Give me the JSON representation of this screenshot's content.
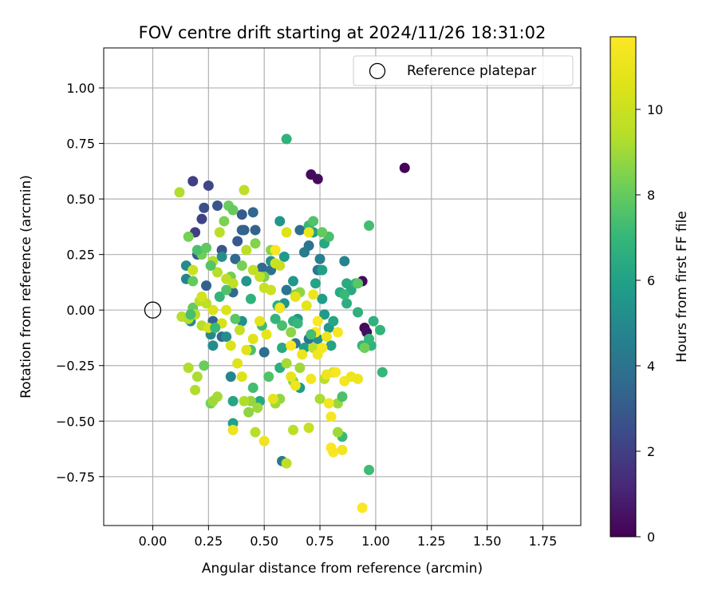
{
  "chart_data": {
    "type": "scatter",
    "title": "FOV centre drift starting at 2024/11/26 18:31:02",
    "xlabel": "Angular distance from reference (arcmin)",
    "ylabel": "Rotation from reference (arcmin)",
    "xlim": [
      -0.22,
      1.92
    ],
    "ylim": [
      -0.97,
      1.18
    ],
    "xticks": [
      "0.00",
      "0.25",
      "0.50",
      "0.75",
      "1.00",
      "1.25",
      "1.50",
      "1.75"
    ],
    "xtick_values": [
      0,
      0.25,
      0.5,
      0.75,
      1.0,
      1.25,
      1.5,
      1.75
    ],
    "yticks": [
      "−0.75",
      "−0.50",
      "−0.25",
      "0.00",
      "0.25",
      "0.50",
      "0.75",
      "1.00"
    ],
    "ytick_values": [
      -0.75,
      -0.5,
      -0.25,
      0,
      0.25,
      0.5,
      0.75,
      1.0
    ],
    "grid": true,
    "legend": {
      "position": "top-right",
      "entries": [
        {
          "label": "Reference platepar",
          "marker": "open-circle"
        }
      ]
    },
    "reference_point": {
      "x": 0.0,
      "y": 0.0
    },
    "colorbar": {
      "label": "Hours from first FF file",
      "colormap": "viridis",
      "range": [
        0,
        11.7
      ],
      "ticks": [
        "0",
        "2",
        "4",
        "6",
        "8",
        "10"
      ],
      "tick_values": [
        0,
        2,
        4,
        6,
        8,
        10
      ]
    },
    "points": [
      [
        1.13,
        0.64,
        0.1
      ],
      [
        0.71,
        0.61,
        0.3
      ],
      [
        0.74,
        0.59,
        0.3
      ],
      [
        0.94,
        0.13,
        0.2
      ],
      [
        0.95,
        -0.08,
        0.3
      ],
      [
        0.96,
        -0.1,
        0.4
      ],
      [
        0.18,
        0.58,
        2.0
      ],
      [
        0.25,
        0.56,
        2.3
      ],
      [
        0.22,
        0.41,
        2.1
      ],
      [
        0.23,
        0.46,
        2.6
      ],
      [
        0.19,
        0.35,
        2.0
      ],
      [
        0.29,
        0.47,
        2.8
      ],
      [
        0.4,
        0.43,
        3.0
      ],
      [
        0.45,
        0.44,
        3.5
      ],
      [
        0.41,
        0.36,
        3.2
      ],
      [
        0.46,
        0.36,
        3.3
      ],
      [
        0.38,
        0.31,
        3.0
      ],
      [
        0.31,
        0.27,
        2.8
      ],
      [
        0.2,
        0.25,
        3.1
      ],
      [
        0.4,
        0.36,
        3.4
      ],
      [
        0.37,
        0.23,
        3.5
      ],
      [
        0.49,
        0.19,
        3.6
      ],
      [
        0.53,
        0.18,
        3.9
      ],
      [
        0.24,
        0.11,
        3.2
      ],
      [
        0.27,
        -0.05,
        3.4
      ],
      [
        0.31,
        -0.12,
        3.6
      ],
      [
        0.36,
        0.08,
        3.7
      ],
      [
        0.5,
        -0.19,
        3.8
      ],
      [
        0.57,
        0.01,
        3.5
      ],
      [
        0.6,
        0.09,
        4.1
      ],
      [
        0.66,
        0.36,
        3.9
      ],
      [
        0.7,
        0.29,
        4.0
      ],
      [
        0.68,
        0.26,
        4.3
      ],
      [
        0.74,
        0.18,
        4.2
      ],
      [
        0.75,
        0.23,
        4.6
      ],
      [
        0.86,
        0.22,
        4.8
      ],
      [
        0.58,
        -0.68,
        4.3
      ],
      [
        0.64,
        -0.15,
        4.2
      ],
      [
        0.7,
        -0.13,
        4.0
      ],
      [
        0.35,
        -0.3,
        4.8
      ],
      [
        0.15,
        0.14,
        4.8
      ],
      [
        0.15,
        0.2,
        5.0
      ],
      [
        0.17,
        -0.05,
        5.0
      ],
      [
        0.26,
        -0.11,
        4.9
      ],
      [
        0.27,
        -0.16,
        5.1
      ],
      [
        0.33,
        -0.12,
        5.2
      ],
      [
        0.4,
        -0.05,
        5.3
      ],
      [
        0.42,
        0.13,
        5.5
      ],
      [
        0.31,
        0.24,
        5.2
      ],
      [
        0.53,
        0.22,
        5.4
      ],
      [
        0.57,
        0.4,
        5.5
      ],
      [
        0.59,
        0.24,
        5.7
      ],
      [
        0.63,
        0.13,
        5.6
      ],
      [
        0.59,
        0.03,
        5.5
      ],
      [
        0.65,
        -0.04,
        5.6
      ],
      [
        0.68,
        -0.17,
        5.8
      ],
      [
        0.66,
        -0.35,
        5.8
      ],
      [
        0.74,
        -0.13,
        5.4
      ],
      [
        0.77,
        -0.02,
        5.7
      ],
      [
        0.79,
        -0.08,
        5.6
      ],
      [
        0.76,
        0.05,
        5.9
      ],
      [
        0.76,
        0.18,
        6.0
      ],
      [
        0.8,
        -0.16,
        6.1
      ],
      [
        0.81,
        -0.05,
        6.2
      ],
      [
        0.77,
        0.3,
        6.3
      ],
      [
        0.72,
        0.35,
        6.0
      ],
      [
        0.73,
        0.12,
        6.1
      ],
      [
        0.87,
        0.12,
        6.5
      ],
      [
        0.89,
        0.09,
        6.3
      ],
      [
        0.84,
        0.08,
        6.4
      ],
      [
        0.87,
        0.03,
        6.6
      ],
      [
        0.91,
        0.12,
        6.8
      ],
      [
        0.92,
        -0.01,
        6.7
      ],
      [
        0.98,
        -0.16,
        6.8
      ],
      [
        0.97,
        -0.13,
        7.0
      ],
      [
        0.99,
        -0.05,
        6.7
      ],
      [
        1.02,
        -0.09,
        6.9
      ],
      [
        1.03,
        -0.28,
        7.0
      ],
      [
        0.94,
        -0.16,
        6.9
      ],
      [
        0.97,
        -0.72,
        7.2
      ],
      [
        0.85,
        -0.57,
        7.1
      ],
      [
        0.86,
        0.07,
        7.1
      ],
      [
        0.6,
        0.77,
        6.8
      ],
      [
        0.7,
        0.38,
        7.0
      ],
      [
        0.97,
        0.38,
        7.3
      ],
      [
        0.79,
        0.33,
        7.4
      ],
      [
        0.56,
        0.02,
        6.5
      ],
      [
        0.57,
        -0.26,
        6.6
      ],
      [
        0.63,
        -0.05,
        6.7
      ],
      [
        0.58,
        -0.17,
        6.4
      ],
      [
        0.48,
        -0.41,
        6.3
      ],
      [
        0.36,
        -0.41,
        6.2
      ],
      [
        0.36,
        -0.51,
        6.0
      ],
      [
        0.45,
        -0.35,
        7.3
      ],
      [
        0.44,
        -0.18,
        7.5
      ],
      [
        0.49,
        -0.07,
        7.2
      ],
      [
        0.52,
        -0.3,
        7.6
      ],
      [
        0.58,
        -0.07,
        7.4
      ],
      [
        0.72,
        0.4,
        7.6
      ],
      [
        0.76,
        0.35,
        8.0
      ],
      [
        0.34,
        0.47,
        8.1
      ],
      [
        0.36,
        0.45,
        8.0
      ],
      [
        0.22,
        0.25,
        8.2
      ],
      [
        0.18,
        0.01,
        8.0
      ],
      [
        0.16,
        0.33,
        8.3
      ],
      [
        0.18,
        0.13,
        8.0
      ],
      [
        0.23,
        -0.25,
        8.1
      ],
      [
        0.26,
        -0.42,
        8.2
      ],
      [
        0.32,
        0.4,
        8.4
      ],
      [
        0.35,
        0.15,
        8.2
      ],
      [
        0.4,
        0.2,
        8.3
      ],
      [
        0.46,
        0.3,
        8.5
      ],
      [
        0.5,
        0.15,
        8.4
      ],
      [
        0.53,
        0.27,
        8.6
      ],
      [
        0.64,
        0.07,
        8.5
      ],
      [
        0.66,
        0.08,
        8.7
      ],
      [
        0.63,
        -0.32,
        8.5
      ],
      [
        0.62,
        -0.1,
        8.7
      ],
      [
        0.57,
        -0.4,
        8.8
      ],
      [
        0.55,
        -0.42,
        9.0
      ],
      [
        0.44,
        -0.41,
        8.8
      ],
      [
        0.43,
        -0.46,
        8.7
      ],
      [
        0.47,
        -0.44,
        9.0
      ],
      [
        0.6,
        -0.24,
        9.1
      ],
      [
        0.66,
        -0.26,
        9.0
      ],
      [
        0.83,
        -0.42,
        8.9
      ],
      [
        0.83,
        -0.55,
        9.0
      ],
      [
        0.75,
        -0.4,
        9.2
      ],
      [
        0.77,
        -0.31,
        9.5
      ],
      [
        0.81,
        -0.28,
        9.7
      ],
      [
        0.72,
        -0.17,
        9.6
      ],
      [
        0.7,
        -0.53,
        9.9
      ],
      [
        0.6,
        -0.69,
        9.6
      ],
      [
        0.63,
        -0.54,
        9.5
      ],
      [
        0.46,
        -0.55,
        9.4
      ],
      [
        0.41,
        -0.41,
        9.3
      ],
      [
        0.29,
        -0.39,
        9.1
      ],
      [
        0.27,
        -0.41,
        9.0
      ],
      [
        0.2,
        -0.3,
        9.2
      ],
      [
        0.19,
        -0.36,
        9.3
      ],
      [
        0.16,
        -0.26,
        9.3
      ],
      [
        0.13,
        -0.03,
        9.4
      ],
      [
        0.16,
        -0.04,
        9.3
      ],
      [
        0.19,
        -0.02,
        9.5
      ],
      [
        0.21,
        0.04,
        9.5
      ],
      [
        0.22,
        -0.07,
        9.4
      ],
      [
        0.24,
        0.03,
        9.6
      ],
      [
        0.27,
        0.22,
        9.3
      ],
      [
        0.29,
        0.17,
        9.4
      ],
      [
        0.3,
        0.35,
        9.5
      ],
      [
        0.33,
        0.14,
        9.6
      ],
      [
        0.36,
        0.12,
        9.7
      ],
      [
        0.39,
        -0.09,
        9.8
      ],
      [
        0.41,
        0.54,
        9.6
      ],
      [
        0.42,
        0.27,
        9.5
      ],
      [
        0.45,
        0.18,
        9.7
      ],
      [
        0.48,
        0.15,
        9.8
      ],
      [
        0.5,
        0.1,
        9.9
      ],
      [
        0.53,
        0.09,
        10.0
      ],
      [
        0.55,
        0.21,
        10.1
      ],
      [
        0.57,
        0.2,
        9.9
      ],
      [
        0.12,
        0.53,
        9.3
      ],
      [
        0.18,
        0.18,
        10.0
      ],
      [
        0.22,
        0.06,
        10.2
      ],
      [
        0.25,
        -0.08,
        10.3
      ],
      [
        0.27,
        0.0,
        10.4
      ],
      [
        0.31,
        -0.06,
        10.3
      ],
      [
        0.33,
        0.0,
        10.5
      ],
      [
        0.35,
        -0.16,
        10.4
      ],
      [
        0.38,
        -0.24,
        10.6
      ],
      [
        0.4,
        -0.3,
        10.5
      ],
      [
        0.42,
        -0.18,
        10.7
      ],
      [
        0.45,
        -0.13,
        10.6
      ],
      [
        0.48,
        -0.05,
        10.8
      ],
      [
        0.51,
        -0.11,
        10.9
      ],
      [
        0.54,
        -0.4,
        10.8
      ],
      [
        0.36,
        -0.54,
        11.0
      ],
      [
        0.5,
        -0.59,
        11.2
      ],
      [
        0.62,
        -0.3,
        10.9
      ],
      [
        0.64,
        0.06,
        10.7
      ],
      [
        0.67,
        -0.2,
        11.0
      ],
      [
        0.69,
        0.02,
        10.8
      ],
      [
        0.7,
        0.35,
        11.1
      ],
      [
        0.72,
        0.07,
        11.2
      ],
      [
        0.74,
        -0.2,
        11.3
      ],
      [
        0.76,
        -0.17,
        11.4
      ],
      [
        0.78,
        -0.29,
        11.2
      ],
      [
        0.79,
        -0.42,
        11.3
      ],
      [
        0.8,
        -0.48,
        11.4
      ],
      [
        0.82,
        -0.28,
        11.5
      ],
      [
        0.83,
        -0.1,
        11.4
      ],
      [
        0.8,
        -0.62,
        11.6
      ],
      [
        0.81,
        -0.64,
        11.5
      ],
      [
        0.85,
        -0.63,
        11.3
      ],
      [
        0.86,
        -0.32,
        11.4
      ],
      [
        0.89,
        -0.3,
        11.2
      ],
      [
        0.92,
        -0.31,
        11.1
      ],
      [
        0.94,
        -0.89,
        11.6
      ],
      [
        0.6,
        0.35,
        10.5
      ],
      [
        0.55,
        0.27,
        11.5
      ],
      [
        0.57,
        0.01,
        11.3
      ],
      [
        0.62,
        -0.16,
        11.6
      ],
      [
        0.64,
        -0.34,
        11.2
      ],
      [
        0.71,
        -0.31,
        11.3
      ],
      [
        0.73,
        -0.1,
        11.5
      ],
      [
        0.74,
        -0.05,
        11.6
      ],
      [
        0.78,
        -0.12,
        11.1
      ],
      [
        0.95,
        -0.17,
        8.2
      ],
      [
        0.92,
        0.12,
        7.8
      ],
      [
        0.85,
        -0.39,
        7.5
      ],
      [
        0.71,
        -0.11,
        7.3
      ],
      [
        0.65,
        -0.06,
        7.0
      ],
      [
        0.55,
        -0.04,
        6.9
      ],
      [
        0.44,
        0.05,
        6.8
      ],
      [
        0.3,
        0.06,
        6.9
      ],
      [
        0.28,
        -0.08,
        7.1
      ],
      [
        0.33,
        0.09,
        7.6
      ],
      [
        0.37,
        -0.04,
        7.8
      ],
      [
        0.26,
        0.2,
        7.7
      ],
      [
        0.2,
        0.27,
        7.5
      ],
      [
        0.17,
        -0.02,
        7.4
      ],
      [
        0.24,
        0.28,
        7.9
      ]
    ]
  }
}
